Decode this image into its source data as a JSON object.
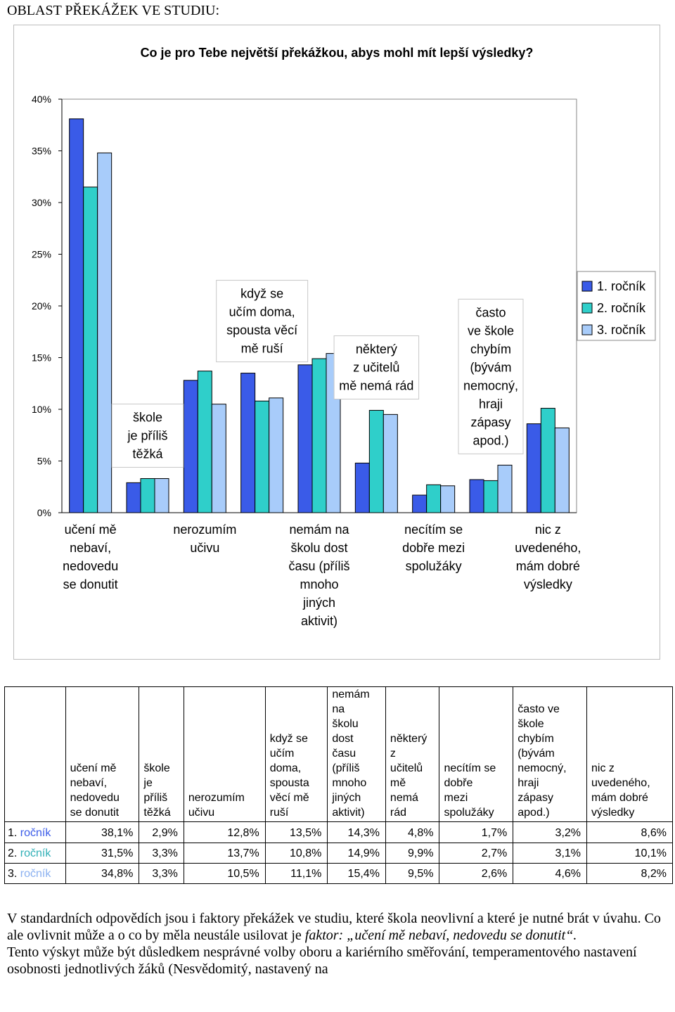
{
  "section_title": "OBLAST PŘEKÁŽEK VE STUDIU:",
  "colors": {
    "series1": "#3A5BE8",
    "series2": "#2FCFCA",
    "series3": "#A8CCFA",
    "text": "#000000"
  },
  "chart_data": {
    "type": "bar",
    "title": "Co je pro Tebe největší překážkou, abys mohl mít lepší výsledky?",
    "xlabel": "",
    "ylabel": "",
    "ylim": [
      0,
      40
    ],
    "yticks": [
      "0%",
      "5%",
      "10%",
      "15%",
      "20%",
      "25%",
      "30%",
      "35%",
      "40%"
    ],
    "legend_position": "right",
    "categories": [
      "učení mě nebaví, nedovedu se donutit",
      "škole je příliš těžká",
      "nerozumím učivu",
      "když se učím doma, spousta věcí mě ruší",
      "nemám na školu dost času (příliš mnoho jiných aktivit)",
      "některý z učitelů mě nemá rád",
      "necítím se dobře mezi spolužáky",
      "často ve škole chybím (bývám nemocný, hraji zápasy apod.)",
      "nic z uvedeného, mám dobré výsledky"
    ],
    "category_lines": [
      [
        "učení mě",
        "nebaví,",
        "nedovedu",
        "se donutit"
      ],
      [
        "škole",
        "je příliš",
        "těžká"
      ],
      [
        "nerozumím",
        "učivu"
      ],
      [
        "když se",
        "učím doma,",
        "spousta věcí",
        "mě ruší"
      ],
      [
        "nemám na",
        "školu dost",
        "času (příliš",
        "mnoho",
        "jiných",
        "aktivit)"
      ],
      [
        "některý",
        "z učitelů",
        "mě nemá rád"
      ],
      [
        "necítím se",
        "dobře mezi",
        "spolužáky"
      ],
      [
        "často",
        "ve škole",
        "chybím",
        "(bývám",
        "nemocný,",
        "hraji",
        "zápasy",
        "apod.)"
      ],
      [
        "nic z",
        "uvedeného,",
        "mám dobré",
        "výsledky"
      ]
    ],
    "series": [
      {
        "name": "1. ročník",
        "values": [
          38.1,
          2.9,
          12.8,
          13.5,
          14.3,
          4.8,
          1.7,
          3.2,
          8.6
        ]
      },
      {
        "name": "2. ročník",
        "values": [
          31.5,
          3.3,
          13.7,
          10.8,
          14.9,
          9.9,
          2.7,
          3.1,
          10.1
        ]
      },
      {
        "name": "3. ročník",
        "values": [
          34.8,
          3.3,
          10.5,
          11.1,
          15.4,
          9.5,
          2.6,
          4.6,
          8.2
        ]
      }
    ]
  },
  "table": {
    "headers": [
      [
        "učení mě",
        "nebaví,",
        "nedovedu",
        "se donutit"
      ],
      [
        "škole",
        "je",
        "příliš",
        "těžká"
      ],
      [
        "nerozumím",
        "učivu"
      ],
      [
        "když se",
        "učím",
        "doma,",
        "spousta",
        "věcí mě",
        "ruší"
      ],
      [
        "nemám",
        "na",
        "školu",
        "dost",
        "času",
        "(příliš",
        "mnoho",
        "jiných",
        "aktivit)"
      ],
      [
        "některý",
        "z",
        "učitelů",
        "mě",
        "nemá",
        "rád"
      ],
      [
        "necítím se",
        "dobře",
        "mezi",
        "spolužáky"
      ],
      [
        "často ve",
        "škole",
        "chybím",
        "(bývám",
        "nemocný,",
        "hraji",
        "zápasy",
        "apod.)"
      ],
      [
        "nic z",
        "uvedeného,",
        "mám dobré",
        "výsledky"
      ]
    ],
    "rows": [
      {
        "label": "1. ročník",
        "cells": [
          "38,1%",
          "2,9%",
          "12,8%",
          "13,5%",
          "14,3%",
          "4,8%",
          "1,7%",
          "3,2%",
          "8,6%"
        ]
      },
      {
        "label": "2. ročník",
        "cells": [
          "31,5%",
          "3,3%",
          "13,7%",
          "10,8%",
          "14,9%",
          "9,9%",
          "2,7%",
          "3,1%",
          "10,1%"
        ]
      },
      {
        "label": "3. ročník",
        "cells": [
          "34,8%",
          "3,3%",
          "10,5%",
          "11,1%",
          "15,4%",
          "9,5%",
          "2,6%",
          "4,6%",
          "8,2%"
        ]
      }
    ]
  },
  "text": {
    "p1": "V standardních odpovědích jsou i faktory překážek ve studiu, které škola neovlivní a které je nutné brát v úvahu. Co ale ovlivnit může a o co by měla neustále usilovat je ",
    "p1_italic": "faktor: „učení mě nebaví, nedovedu se donutit“.",
    "p2": "Tento výskyt může být důsledkem nesprávné volby oboru a kariérního směřování, temperamentového nastavení osobnosti jednotlivých žáků (Nesvědomitý, nastavený na"
  }
}
